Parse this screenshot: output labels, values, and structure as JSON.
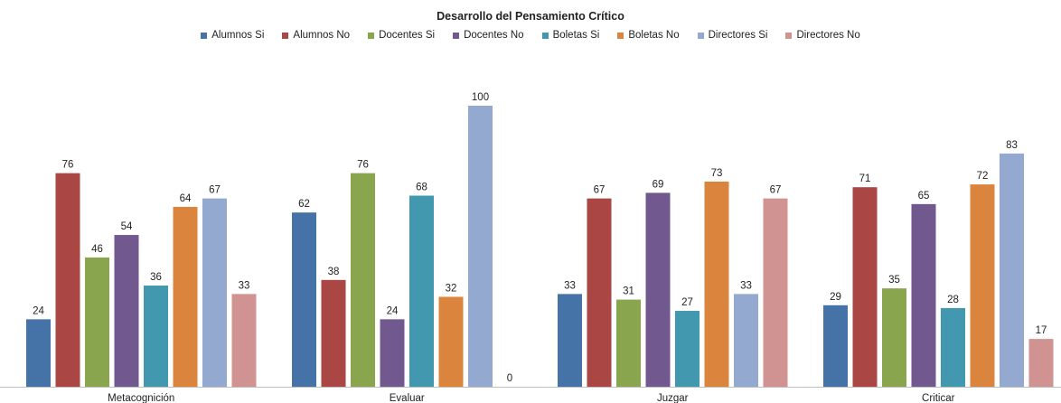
{
  "chart_data": {
    "type": "bar",
    "title": "Desarrollo del Pensamiento Crítico",
    "xlabel": "",
    "ylabel": "",
    "ylim": [
      0,
      100
    ],
    "grid": false,
    "legend_position": "top",
    "categories": [
      "Metacognición",
      "Evaluar",
      "Juzgar",
      "Criticar"
    ],
    "series": [
      {
        "name": "Alumnos Si",
        "color": "#4572A7",
        "values": [
          24,
          62,
          33,
          29
        ]
      },
      {
        "name": "Alumnos No",
        "color": "#AA4643",
        "values": [
          76,
          38,
          67,
          71
        ]
      },
      {
        "name": "Docentes Si",
        "color": "#89A54E",
        "values": [
          46,
          76,
          31,
          35
        ]
      },
      {
        "name": "Docentes No",
        "color": "#71588F",
        "values": [
          54,
          24,
          69,
          65
        ]
      },
      {
        "name": "Boletas Si",
        "color": "#4198AF",
        "values": [
          36,
          68,
          27,
          28
        ]
      },
      {
        "name": "Boletas No",
        "color": "#DB843D",
        "values": [
          64,
          32,
          73,
          72
        ]
      },
      {
        "name": "Directores Si",
        "color": "#93A9CF",
        "values": [
          67,
          100,
          33,
          83
        ]
      },
      {
        "name": "Directores No",
        "color": "#D19392",
        "values": [
          33,
          0,
          67,
          17
        ]
      }
    ]
  }
}
